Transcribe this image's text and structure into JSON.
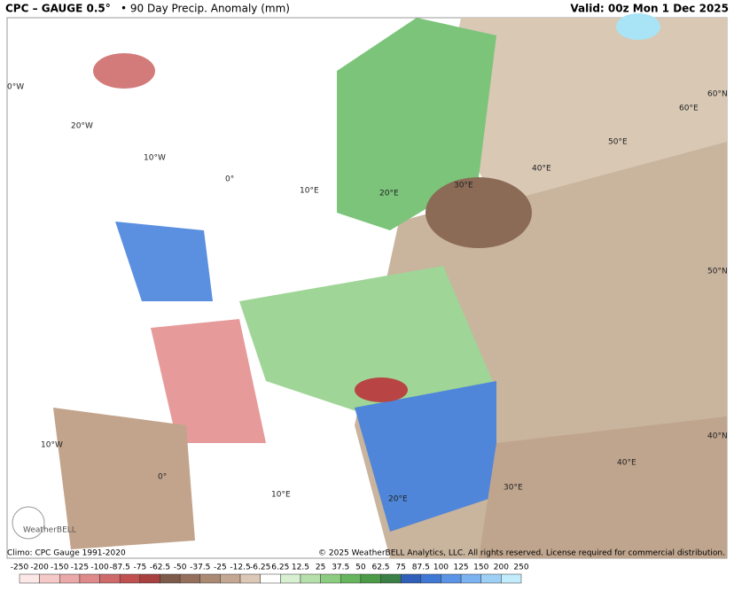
{
  "header": {
    "title": "CPC – GAUGE 0.5°",
    "subtitle": "• 90 Day Precip. Anomaly (mm)",
    "valid": "Valid: 00z Mon 1 Dec 2025"
  },
  "graticule": {
    "labels": [
      "0°W",
      "20°W",
      "10°W",
      "0°",
      "10°E",
      "20°E",
      "30°E",
      "40°E",
      "50°E",
      "60°E",
      "60°N",
      "50°N",
      "40°N",
      "10°W",
      "0°",
      "10°E",
      "20°E",
      "30°E",
      "40°E"
    ]
  },
  "footer": {
    "climo": "Climo: CPC Gauge 1991-2020",
    "copyright": "© 2025 WeatherBELL Analytics, LLC. All rights reserved. License required for commercial distribution.",
    "logo": "WeatherBELL"
  },
  "colorbar": {
    "labels": [
      -250,
      -200,
      -150,
      -125,
      -100,
      -87.5,
      -75,
      -62.5,
      -50,
      -37.5,
      -25,
      -12.5,
      -6.25,
      6.25,
      12.5,
      25,
      37.5,
      50,
      62.5,
      75,
      87.5,
      100,
      125,
      150,
      200,
      250
    ]
  }
}
